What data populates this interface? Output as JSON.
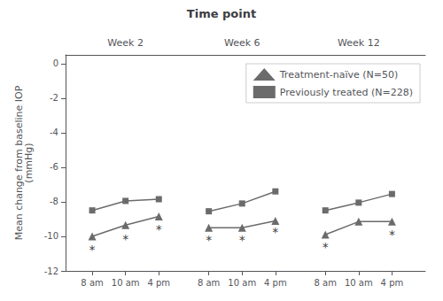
{
  "chart_data": {
    "type": "line",
    "title": "Time point",
    "ylabel": "Mean change from baseline IOP\n(mmHg)",
    "x": [
      1,
      2,
      3,
      null,
      4.5,
      5.5,
      6.5,
      null,
      8,
      9,
      10
    ],
    "series": [
      {
        "name": "Treatment-naïve (N=50)",
        "color": "#6b6b6b",
        "marker": "triangle",
        "values": [
          -10.0,
          -9.35,
          -8.85,
          null,
          -9.5,
          -9.5,
          -9.1,
          null,
          -9.9,
          -9.15,
          -9.15
        ]
      },
      {
        "name": "Previously treated (N=228)",
        "color": "#6b6b6b",
        "marker": "square",
        "values": [
          -8.5,
          -7.95,
          -7.85,
          null,
          -8.55,
          -8.1,
          -7.4,
          null,
          -8.5,
          -8.05,
          -7.55
        ]
      }
    ],
    "xlim": [
      0.2,
      11.0
    ],
    "xticks": [
      {
        "value": 1,
        "label": "8 am"
      },
      {
        "value": 2,
        "label": "10 am"
      },
      {
        "value": 3,
        "label": "4 pm"
      },
      {
        "value": 4.5,
        "label": "8 am"
      },
      {
        "value": 5.5,
        "label": "10 am"
      },
      {
        "value": 6.5,
        "label": "4 pm"
      },
      {
        "value": 8,
        "label": "8 am"
      },
      {
        "value": 9,
        "label": "10 am"
      },
      {
        "value": 10,
        "label": "4 pm"
      }
    ],
    "ylim": [
      -12,
      0.5
    ],
    "yticks": [
      0,
      -2,
      -4,
      -6,
      -8,
      -10,
      -12
    ],
    "group_labels": [
      {
        "text": "Week 2",
        "x": 2
      },
      {
        "text": "Week 6",
        "x": 5.5
      },
      {
        "text": "Week 12",
        "x": 9
      }
    ],
    "annotations": [
      {
        "text": "*",
        "x": 1,
        "y": -10.75
      },
      {
        "text": "*",
        "x": 2,
        "y": -10.15
      },
      {
        "text": "*",
        "x": 3,
        "y": -9.6
      },
      {
        "text": "*",
        "x": 4.5,
        "y": -10.2
      },
      {
        "text": "*",
        "x": 5.5,
        "y": -10.2
      },
      {
        "text": "*",
        "x": 6.5,
        "y": -9.75
      },
      {
        "text": "*",
        "x": 8,
        "y": -10.6
      },
      {
        "text": "*",
        "x": 10,
        "y": -9.9
      }
    ],
    "legend": "upper right",
    "grid": false
  }
}
